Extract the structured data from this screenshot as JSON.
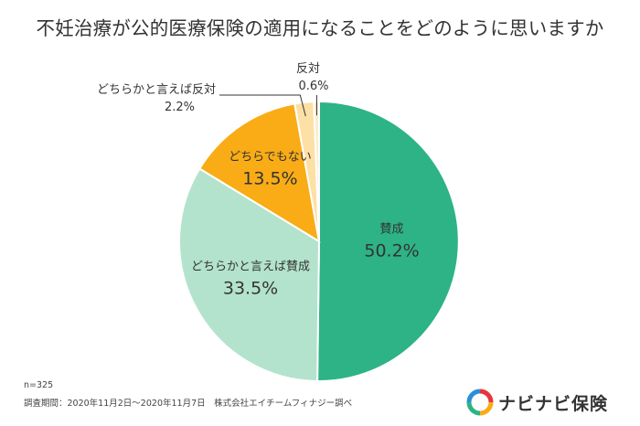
{
  "chart_data": {
    "type": "pie",
    "title": "不妊治療が公的医療保険の適用になることをどのように思いますか",
    "categories": [
      "賛成",
      "どちらかと言えば賛成",
      "どちらでもない",
      "どちらかと言えば反対",
      "反対"
    ],
    "values": [
      50.2,
      33.5,
      13.5,
      2.2,
      0.6
    ],
    "value_labels": [
      "50.2%",
      "33.5%",
      "13.5%",
      "2.2%",
      "0.6%"
    ],
    "colors": [
      "#2db386",
      "#b3e3cc",
      "#f9ac16",
      "#fde0a5",
      "#fbeccb"
    ],
    "start": "12 o'clock",
    "direction": "clockwise"
  },
  "footer": {
    "n": "n=325",
    "note": "調査期間：2020年11月2日～2020年11月7日　株式会社エイチームフィナジー調べ"
  },
  "brand": {
    "name": "ナビナビ保険",
    "logo_icon": "navinavi-logo-icon"
  }
}
